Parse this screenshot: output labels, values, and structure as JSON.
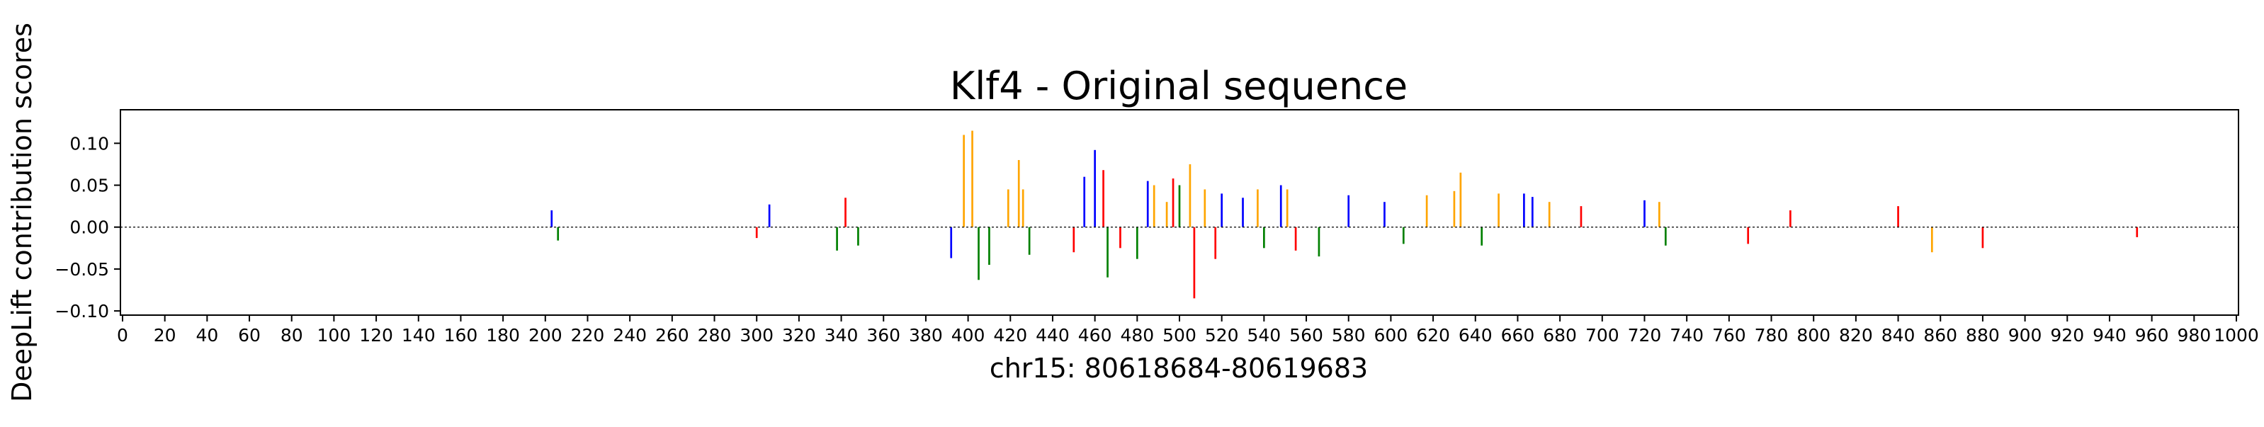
{
  "chart_data": {
    "type": "bar",
    "title": "Klf4 - Original sequence",
    "xlabel": "chr15: 80618684-80619683",
    "ylabel": "DeepLift contribution scores",
    "xlim": [
      0,
      1000
    ],
    "ylim": [
      -0.105,
      0.14
    ],
    "x_ticks": [
      0,
      20,
      40,
      60,
      80,
      100,
      120,
      140,
      160,
      180,
      200,
      220,
      240,
      260,
      280,
      300,
      320,
      340,
      360,
      380,
      400,
      420,
      440,
      460,
      480,
      500,
      520,
      540,
      560,
      580,
      600,
      620,
      640,
      660,
      680,
      700,
      720,
      740,
      760,
      780,
      800,
      820,
      840,
      860,
      880,
      900,
      920,
      940,
      960,
      980,
      1000
    ],
    "x_tick_labels": [
      "0",
      "20",
      "40",
      "60",
      "80",
      "100",
      "120",
      "140",
      "160",
      "180",
      "200",
      "220",
      "240",
      "260",
      "280",
      "300",
      "320",
      "340",
      "360",
      "380",
      "400",
      "420",
      "440",
      "460",
      "480",
      "500",
      "520",
      "540",
      "560",
      "580",
      "600",
      "620",
      "640",
      "660",
      "680",
      "700",
      "720",
      "740",
      "760",
      "780",
      "800",
      "820",
      "840",
      "860",
      "880",
      "900",
      "920",
      "940",
      "960",
      "980",
      "1000"
    ],
    "y_ticks": [
      -0.1,
      -0.05,
      0.0,
      0.05,
      0.1
    ],
    "y_tick_labels": [
      "−0.10",
      "−0.05",
      "0.00",
      "0.05",
      "0.10"
    ],
    "grid": false,
    "base_colors": {
      "A": "#008000",
      "C": "#0000ff",
      "G": "#ffa500",
      "T": "#ff0000"
    },
    "series": [
      {
        "values": [
          {
            "x": 203,
            "y": 0.02,
            "base": "C"
          },
          {
            "x": 206,
            "y": -0.016,
            "base": "A"
          },
          {
            "x": 300,
            "y": -0.013,
            "base": "T"
          },
          {
            "x": 306,
            "y": 0.027,
            "base": "C"
          },
          {
            "x": 338,
            "y": -0.028,
            "base": "A"
          },
          {
            "x": 342,
            "y": 0.035,
            "base": "T"
          },
          {
            "x": 348,
            "y": -0.022,
            "base": "A"
          },
          {
            "x": 392,
            "y": -0.037,
            "base": "C"
          },
          {
            "x": 398,
            "y": 0.11,
            "base": "G"
          },
          {
            "x": 402,
            "y": 0.115,
            "base": "G"
          },
          {
            "x": 405,
            "y": -0.063,
            "base": "A"
          },
          {
            "x": 410,
            "y": -0.045,
            "base": "A"
          },
          {
            "x": 419,
            "y": 0.045,
            "base": "G"
          },
          {
            "x": 424,
            "y": 0.08,
            "base": "G"
          },
          {
            "x": 426,
            "y": 0.045,
            "base": "G"
          },
          {
            "x": 429,
            "y": -0.033,
            "base": "A"
          },
          {
            "x": 450,
            "y": -0.03,
            "base": "T"
          },
          {
            "x": 455,
            "y": 0.06,
            "base": "C"
          },
          {
            "x": 460,
            "y": 0.092,
            "base": "C"
          },
          {
            "x": 464,
            "y": 0.068,
            "base": "T"
          },
          {
            "x": 466,
            "y": -0.06,
            "base": "A"
          },
          {
            "x": 472,
            "y": -0.025,
            "base": "T"
          },
          {
            "x": 480,
            "y": -0.038,
            "base": "A"
          },
          {
            "x": 485,
            "y": 0.055,
            "base": "C"
          },
          {
            "x": 488,
            "y": 0.05,
            "base": "G"
          },
          {
            "x": 494,
            "y": 0.03,
            "base": "G"
          },
          {
            "x": 497,
            "y": 0.058,
            "base": "T"
          },
          {
            "x": 500,
            "y": 0.05,
            "base": "A"
          },
          {
            "x": 505,
            "y": 0.075,
            "base": "G"
          },
          {
            "x": 507,
            "y": -0.085,
            "base": "T"
          },
          {
            "x": 512,
            "y": 0.045,
            "base": "G"
          },
          {
            "x": 517,
            "y": -0.038,
            "base": "T"
          },
          {
            "x": 520,
            "y": 0.04,
            "base": "C"
          },
          {
            "x": 530,
            "y": 0.035,
            "base": "C"
          },
          {
            "x": 537,
            "y": 0.045,
            "base": "G"
          },
          {
            "x": 540,
            "y": -0.025,
            "base": "A"
          },
          {
            "x": 548,
            "y": 0.05,
            "base": "C"
          },
          {
            "x": 551,
            "y": 0.045,
            "base": "G"
          },
          {
            "x": 555,
            "y": -0.028,
            "base": "T"
          },
          {
            "x": 566,
            "y": -0.035,
            "base": "A"
          },
          {
            "x": 580,
            "y": 0.038,
            "base": "C"
          },
          {
            "x": 597,
            "y": 0.03,
            "base": "C"
          },
          {
            "x": 606,
            "y": -0.02,
            "base": "A"
          },
          {
            "x": 617,
            "y": 0.038,
            "base": "G"
          },
          {
            "x": 630,
            "y": 0.043,
            "base": "G"
          },
          {
            "x": 633,
            "y": 0.065,
            "base": "G"
          },
          {
            "x": 643,
            "y": -0.022,
            "base": "A"
          },
          {
            "x": 651,
            "y": 0.04,
            "base": "G"
          },
          {
            "x": 663,
            "y": 0.04,
            "base": "C"
          },
          {
            "x": 667,
            "y": 0.036,
            "base": "C"
          },
          {
            "x": 675,
            "y": 0.03,
            "base": "G"
          },
          {
            "x": 690,
            "y": 0.025,
            "base": "T"
          },
          {
            "x": 720,
            "y": 0.032,
            "base": "C"
          },
          {
            "x": 727,
            "y": 0.03,
            "base": "G"
          },
          {
            "x": 730,
            "y": -0.022,
            "base": "A"
          },
          {
            "x": 769,
            "y": -0.02,
            "base": "T"
          },
          {
            "x": 789,
            "y": 0.02,
            "base": "T"
          },
          {
            "x": 840,
            "y": 0.025,
            "base": "T"
          },
          {
            "x": 856,
            "y": -0.03,
            "base": "G"
          },
          {
            "x": 880,
            "y": -0.025,
            "base": "T"
          },
          {
            "x": 953,
            "y": -0.012,
            "base": "T"
          }
        ]
      }
    ]
  }
}
